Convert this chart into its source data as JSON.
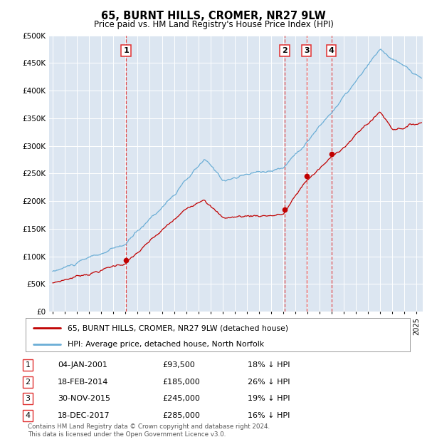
{
  "title": "65, BURNT HILLS, CROMER, NR27 9LW",
  "subtitle": "Price paid vs. HM Land Registry's House Price Index (HPI)",
  "ylim": [
    0,
    500000
  ],
  "yticks": [
    0,
    50000,
    100000,
    150000,
    200000,
    250000,
    300000,
    350000,
    400000,
    450000,
    500000
  ],
  "ytick_labels": [
    "£0",
    "£50K",
    "£100K",
    "£150K",
    "£200K",
    "£250K",
    "£300K",
    "£350K",
    "£400K",
    "£450K",
    "£500K"
  ],
  "hpi_color": "#6baed6",
  "price_color": "#c00000",
  "vline_color": "#e03030",
  "background_color": "#dce6f1",
  "xlim_start": 1994.7,
  "xlim_end": 2025.5,
  "purchases": [
    {
      "num": 1,
      "date_num": 2001.04,
      "price": 93500,
      "label": "04-JAN-2001",
      "pct": "18%"
    },
    {
      "num": 2,
      "date_num": 2014.12,
      "price": 185000,
      "label": "18-FEB-2014",
      "pct": "26%"
    },
    {
      "num": 3,
      "date_num": 2015.92,
      "price": 245000,
      "label": "30-NOV-2015",
      "pct": "19%"
    },
    {
      "num": 4,
      "date_num": 2017.97,
      "price": 285000,
      "label": "18-DEC-2017",
      "pct": "16%"
    }
  ],
  "legend_red_label": "65, BURNT HILLS, CROMER, NR27 9LW (detached house)",
  "legend_blue_label": "HPI: Average price, detached house, North Norfolk",
  "footer": "Contains HM Land Registry data © Crown copyright and database right 2024.\nThis data is licensed under the Open Government Licence v3.0.",
  "table": [
    {
      "num": "1",
      "date": "04-JAN-2001",
      "price": "£93,500",
      "pct": "18% ↓ HPI"
    },
    {
      "num": "2",
      "date": "18-FEB-2014",
      "price": "£185,000",
      "pct": "26% ↓ HPI"
    },
    {
      "num": "3",
      "date": "30-NOV-2015",
      "price": "£245,000",
      "pct": "19% ↓ HPI"
    },
    {
      "num": "4",
      "date": "18-DEC-2017",
      "price": "£285,000",
      "pct": "16% ↓ HPI"
    }
  ]
}
